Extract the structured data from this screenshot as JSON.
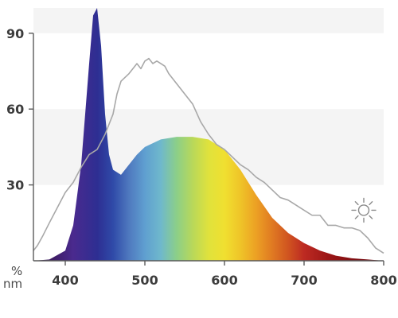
{
  "chart_data": {
    "type": "area",
    "title": "",
    "xlabel": "nm",
    "ylabel": "%",
    "xlim": [
      360,
      800
    ],
    "ylim": [
      0,
      100
    ],
    "x_ticks": [
      "400",
      "500",
      "600",
      "700",
      "800"
    ],
    "y_ticks": [
      "30",
      "60",
      "90"
    ],
    "background_bands": [
      [
        30,
        60
      ],
      [
        90,
        100
      ]
    ],
    "band_color": "#f4f4f4",
    "series": [
      {
        "style": "spectrum-fill",
        "x": [
          360,
          380,
          400,
          410,
          420,
          430,
          435,
          440,
          445,
          450,
          455,
          460,
          470,
          480,
          490,
          500,
          520,
          540,
          560,
          580,
          600,
          620,
          640,
          660,
          680,
          700,
          720,
          740,
          760,
          780,
          800
        ],
        "y": [
          0,
          0.5,
          4,
          14,
          38,
          78,
          97,
          100,
          85,
          58,
          42,
          36,
          34,
          38,
          42,
          45,
          48,
          49,
          49,
          48,
          44,
          36,
          26,
          17,
          11,
          7,
          4,
          2,
          1,
          0.5,
          0
        ]
      },
      {
        "style": "line",
        "color": "#a8a8a8",
        "x": [
          360,
          365,
          372,
          380,
          390,
          400,
          410,
          420,
          430,
          440,
          450,
          460,
          465,
          470,
          480,
          490,
          495,
          500,
          505,
          510,
          515,
          520,
          525,
          530,
          540,
          550,
          560,
          570,
          580,
          590,
          600,
          610,
          620,
          630,
          640,
          650,
          660,
          670,
          680,
          690,
          700,
          710,
          720,
          730,
          740,
          750,
          760,
          770,
          780,
          790,
          800
        ],
        "y": [
          4,
          6,
          10,
          15,
          21,
          27,
          31,
          37,
          42,
          44,
          50,
          58,
          66,
          71,
          74,
          78,
          76,
          79,
          80,
          78,
          79,
          78,
          77,
          74,
          70,
          66,
          62,
          55,
          50,
          46,
          44,
          41,
          38,
          36,
          33,
          31,
          28,
          25,
          24,
          22,
          20,
          18,
          18,
          14,
          14,
          13,
          13,
          12,
          9,
          5,
          3
        ]
      }
    ],
    "annotations": [
      {
        "type": "sun-icon",
        "x": 775,
        "y": 20
      }
    ]
  }
}
